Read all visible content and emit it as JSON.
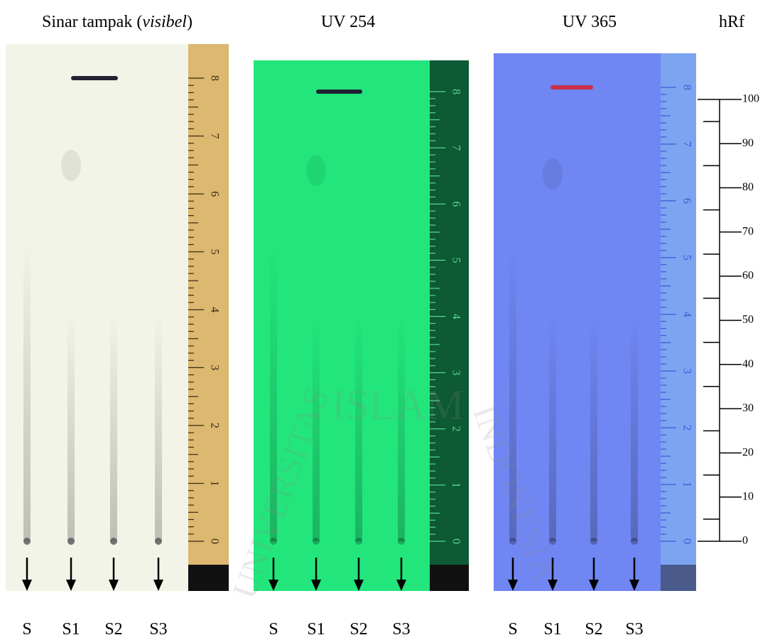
{
  "figure": {
    "panels": [
      {
        "title_parts": [
          "Sinar tampak (",
          "visibel",
          ")"
        ],
        "plate_color": "#f3f4e8",
        "ruler_color": "#dcb870",
        "ruler_text_color": "#3a2a10",
        "lanes": [
          "S",
          "S1",
          "S2",
          "S3"
        ]
      },
      {
        "title_parts": [
          "UV 254"
        ],
        "plate_color": "#22e67c",
        "ruler_color": "#0d5a34",
        "ruler_text_color": "#58d890",
        "lanes": [
          "S",
          "S1",
          "S2",
          "S3"
        ]
      },
      {
        "title_parts": [
          "UV 365"
        ],
        "plate_color": "#7086f2",
        "ruler_color": "#7ca4f0",
        "ruler_text_color": "#3a5ad8",
        "lanes": [
          "S",
          "S1",
          "S2",
          "S3"
        ]
      }
    ],
    "ruler_labels": [
      0,
      1,
      2,
      3,
      4,
      5,
      6,
      7,
      8
    ],
    "hrf_scale": {
      "title": "hRf",
      "ylim": [
        0,
        100
      ],
      "ticks": [
        0,
        10,
        20,
        30,
        40,
        50,
        60,
        70,
        80,
        90,
        100
      ],
      "minor_ticks": [
        5,
        15,
        25,
        35,
        45,
        55,
        65,
        75,
        85,
        95
      ]
    },
    "watermark": [
      "ISLAM",
      "UNIVERSITAS",
      "INDONESIA"
    ]
  }
}
